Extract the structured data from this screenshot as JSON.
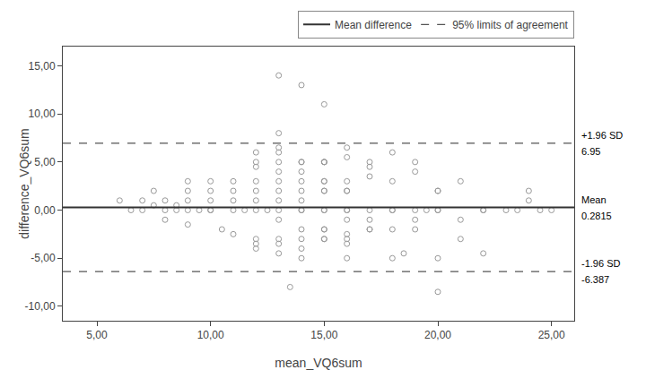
{
  "chart_data": {
    "type": "scatter",
    "xlabel": "mean_VQ6sum",
    "ylabel": "difference_VQ6sum",
    "xlim": [
      3.5,
      26.0
    ],
    "ylim": [
      -11.5,
      17.0
    ],
    "xticks": [
      {
        "value": 5.0,
        "label": "5,00"
      },
      {
        "value": 10.0,
        "label": "10,00"
      },
      {
        "value": 15.0,
        "label": "15,00"
      },
      {
        "value": 20.0,
        "label": "20,00"
      },
      {
        "value": 25.0,
        "label": "25,00"
      }
    ],
    "yticks": [
      {
        "value": -10.0,
        "label": "-10,00"
      },
      {
        "value": -5.0,
        "label": "-5,00"
      },
      {
        "value": 0.0,
        "label": "0,00"
      },
      {
        "value": 5.0,
        "label": "5,00"
      },
      {
        "value": 10.0,
        "label": "10,00"
      },
      {
        "value": 15.0,
        "label": "15,00"
      }
    ],
    "grid": false,
    "legend": "top",
    "series": [
      {
        "type": "scatter",
        "color": "#999999",
        "marker": "circle-open",
        "x": [
          6.0,
          6.5,
          7.0,
          7.0,
          7.5,
          7.5,
          8.0,
          8.0,
          8.0,
          8.5,
          8.5,
          9.0,
          9.0,
          9.0,
          9.0,
          9.0,
          9.5,
          10.0,
          10.0,
          10.0,
          10.0,
          10.0,
          10.5,
          11.0,
          11.0,
          11.0,
          11.0,
          11.0,
          11.5,
          12.0,
          12.0,
          12.0,
          12.0,
          12.0,
          12.0,
          12.0,
          12.0,
          12.0,
          12.0,
          12.5,
          13.0,
          13.0,
          13.0,
          13.0,
          13.0,
          13.0,
          13.0,
          13.0,
          13.0,
          13.0,
          13.0,
          13.0,
          13.0,
          13.0,
          13.5,
          14.0,
          14.0,
          14.0,
          14.0,
          14.0,
          14.0,
          14.0,
          14.0,
          14.0,
          14.0,
          14.0,
          14.0,
          14.0,
          15.0,
          15.0,
          15.0,
          15.0,
          15.0,
          15.0,
          15.0,
          15.0,
          15.0,
          15.0,
          15.0,
          15.0,
          15.0,
          15.0,
          16.0,
          16.0,
          16.0,
          16.0,
          16.0,
          16.0,
          16.0,
          16.0,
          16.0,
          16.0,
          16.0,
          16.0,
          17.0,
          17.0,
          17.0,
          17.0,
          17.0,
          17.0,
          17.0,
          18.0,
          18.0,
          18.0,
          18.0,
          18.0,
          18.0,
          18.5,
          19.0,
          19.0,
          19.0,
          19.0,
          19.0,
          19.5,
          20.0,
          20.0,
          20.0,
          20.0,
          20.0,
          20.0,
          21.0,
          21.0,
          21.0,
          22.0,
          22.0,
          22.0,
          23.0,
          23.5,
          24.0,
          24.0,
          24.5,
          25.0
        ],
        "values": [
          1.0,
          0.0,
          1.0,
          0.0,
          2.0,
          0.5,
          1.0,
          0.0,
          -1.0,
          0.5,
          0.0,
          3.0,
          2.0,
          1.0,
          0.0,
          -1.5,
          0.0,
          3.0,
          2.0,
          1.0,
          0.0,
          0.0,
          -2.0,
          3.0,
          2.0,
          1.0,
          0.0,
          -2.5,
          0.0,
          6.0,
          5.0,
          4.5,
          3.0,
          2.0,
          1.0,
          0.0,
          -3.0,
          -3.5,
          -4.0,
          0.0,
          14.0,
          8.0,
          6.5,
          6.0,
          5.0,
          4.0,
          3.0,
          2.0,
          1.0,
          0.0,
          -1.0,
          -3.0,
          -3.5,
          -4.5,
          -8.0,
          13.0,
          5.0,
          5.0,
          4.0,
          3.0,
          2.0,
          1.0,
          0.0,
          0.0,
          -2.0,
          -3.0,
          -4.0,
          -5.0,
          11.0,
          5.0,
          5.0,
          5.0,
          3.0,
          3.0,
          2.0,
          2.0,
          0.0,
          0.0,
          -2.0,
          -2.0,
          -3.0,
          -3.0,
          6.5,
          5.5,
          3.0,
          2.0,
          2.0,
          0.0,
          0.0,
          -1.0,
          -2.5,
          -3.0,
          -3.5,
          -5.0,
          5.0,
          4.5,
          3.5,
          0.0,
          -1.0,
          -2.0,
          -2.0,
          6.0,
          3.0,
          0.0,
          0.0,
          -2.0,
          -5.0,
          -4.5,
          5.0,
          4.0,
          0.0,
          -1.0,
          -2.0,
          0.0,
          2.0,
          2.0,
          0.0,
          0.0,
          -5.0,
          -8.5,
          3.0,
          -1.0,
          -3.0,
          0.0,
          0.0,
          -4.5,
          0.0,
          0.0,
          2.0,
          1.0,
          0.0,
          0.0
        ]
      },
      {
        "type": "hline",
        "name": "Mean difference",
        "color": "#333333",
        "line_style": "solid",
        "values": [
          0.2815
        ]
      },
      {
        "type": "hline",
        "name": "95% limits of agreement",
        "color": "#555555",
        "line_style": "dash",
        "values": [
          6.95,
          -6.387
        ]
      }
    ],
    "annotations": [
      {
        "text": "+1.96 SD",
        "y": 6.95,
        "side": "above"
      },
      {
        "text": "6.95",
        "y": 6.95,
        "side": "below"
      },
      {
        "text": "Mean",
        "y": 0.2815,
        "side": "above"
      },
      {
        "text": "0.2815",
        "y": 0.2815,
        "side": "below"
      },
      {
        "text": "-1.96 SD",
        "y": -6.387,
        "side": "above"
      },
      {
        "text": "-6.387",
        "y": -6.387,
        "side": "below"
      }
    ]
  }
}
